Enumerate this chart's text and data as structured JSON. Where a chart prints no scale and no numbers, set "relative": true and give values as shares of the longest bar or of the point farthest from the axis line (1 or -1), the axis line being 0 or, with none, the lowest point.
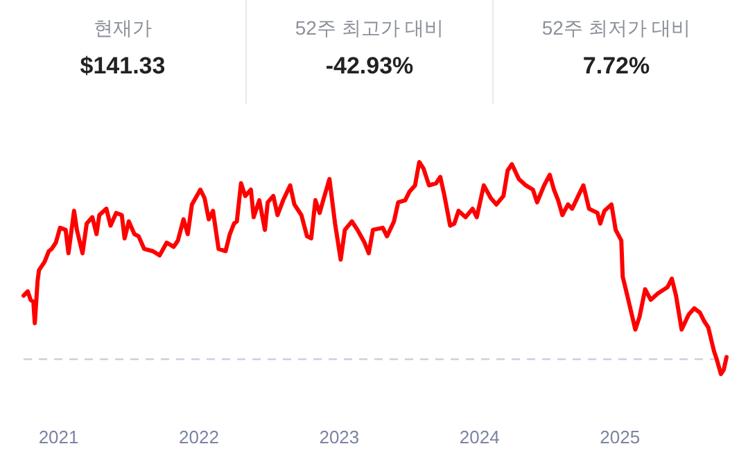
{
  "chart_data": [
    {
      "type": "other",
      "annotations": [
        "현재가",
        "$141.33",
        "52주 최고가 대비",
        "-42.93%",
        "52주 최저가 대비",
        "7.72%"
      ]
    },
    {
      "type": "line",
      "relative": true,
      "tick_labels": "x",
      "line_style": "solid",
      "marker": "none",
      "xlim": [
        2020.75,
        2025.76
      ],
      "xticks": [
        2021,
        2022,
        2023,
        2024,
        2025
      ],
      "x": [
        2020.75,
        2020.78,
        2020.8,
        2020.82,
        2020.83,
        2020.85,
        2020.86,
        2020.9,
        2020.93,
        2020.95,
        2020.98,
        2021.01,
        2021.05,
        2021.07,
        2021.11,
        2021.13,
        2021.17,
        2021.2,
        2021.24,
        2021.27,
        2021.29,
        2021.34,
        2021.37,
        2021.41,
        2021.45,
        2021.47,
        2021.5,
        2021.54,
        2021.57,
        2021.61,
        2021.67,
        2021.72,
        2021.77,
        2021.82,
        2021.85,
        2021.89,
        2021.92,
        2021.95,
        2022.01,
        2022.04,
        2022.07,
        2022.1,
        2022.14,
        2022.19,
        2022.22,
        2022.25,
        2022.27,
        2022.3,
        2022.33,
        2022.37,
        2022.39,
        2022.43,
        2022.47,
        2022.49,
        2022.53,
        2022.56,
        2022.6,
        2022.65,
        2022.68,
        2022.73,
        2022.77,
        2022.8,
        2022.83,
        2022.86,
        2022.89,
        2022.93,
        2022.97,
        2023.01,
        2023.04,
        2023.09,
        2023.13,
        2023.18,
        2023.21,
        2023.24,
        2023.31,
        2023.34,
        2023.39,
        2023.42,
        2023.47,
        2023.5,
        2023.54,
        2023.57,
        2023.6,
        2023.64,
        2023.69,
        2023.72,
        2023.75,
        2023.79,
        2023.82,
        2023.85,
        2023.9,
        2023.95,
        2023.98,
        2024.03,
        2024.08,
        2024.12,
        2024.17,
        2024.2,
        2024.23,
        2024.28,
        2024.33,
        2024.38,
        2024.41,
        2024.46,
        2024.5,
        2024.53,
        2024.56,
        2024.59,
        2024.63,
        2024.66,
        2024.71,
        2024.74,
        2024.78,
        2024.84,
        2024.86,
        2024.89,
        2024.94,
        2024.97,
        2025.01,
        2025.02,
        2025.06,
        2025.11,
        2025.14,
        2025.18,
        2025.22,
        2025.27,
        2025.34,
        2025.37,
        2025.4,
        2025.44,
        2025.49,
        2025.53,
        2025.57,
        2025.6,
        2025.63,
        2025.67,
        2025.69,
        2025.72,
        2025.74,
        2025.76
      ],
      "series": [
        {
          "color": "#ff0000",
          "values": [
            0.37,
            0.39,
            0.35,
            0.34,
            0.24,
            0.44,
            0.49,
            0.53,
            0.58,
            0.59,
            0.62,
            0.69,
            0.68,
            0.57,
            0.77,
            0.68,
            0.57,
            0.71,
            0.74,
            0.66,
            0.75,
            0.78,
            0.7,
            0.76,
            0.75,
            0.64,
            0.72,
            0.66,
            0.65,
            0.59,
            0.58,
            0.56,
            0.62,
            0.6,
            0.63,
            0.73,
            0.66,
            0.8,
            0.87,
            0.83,
            0.73,
            0.77,
            0.59,
            0.58,
            0.66,
            0.71,
            0.72,
            0.9,
            0.84,
            0.87,
            0.74,
            0.82,
            0.68,
            0.81,
            0.84,
            0.75,
            0.82,
            0.89,
            0.8,
            0.75,
            0.65,
            0.64,
            0.82,
            0.76,
            0.83,
            0.92,
            0.71,
            0.54,
            0.68,
            0.72,
            0.68,
            0.62,
            0.57,
            0.68,
            0.69,
            0.65,
            0.72,
            0.81,
            0.82,
            0.86,
            0.89,
            1.0,
            0.97,
            0.89,
            0.9,
            0.93,
            0.84,
            0.7,
            0.71,
            0.77,
            0.74,
            0.78,
            0.74,
            0.89,
            0.83,
            0.8,
            0.84,
            0.96,
            0.99,
            0.92,
            0.89,
            0.87,
            0.81,
            0.89,
            0.94,
            0.87,
            0.82,
            0.75,
            0.8,
            0.78,
            0.85,
            0.89,
            0.78,
            0.76,
            0.71,
            0.77,
            0.8,
            0.68,
            0.63,
            0.46,
            0.35,
            0.21,
            0.27,
            0.4,
            0.35,
            0.38,
            0.41,
            0.45,
            0.37,
            0.21,
            0.28,
            0.31,
            0.29,
            0.25,
            0.22,
            0.11,
            0.07,
            0.0,
            0.02,
            0.08
          ]
        }
      ],
      "ref_lines": [
        {
          "axis": "y",
          "value": 0.07,
          "color": "#d0d3e3",
          "line_style": "dashed"
        }
      ]
    }
  ]
}
